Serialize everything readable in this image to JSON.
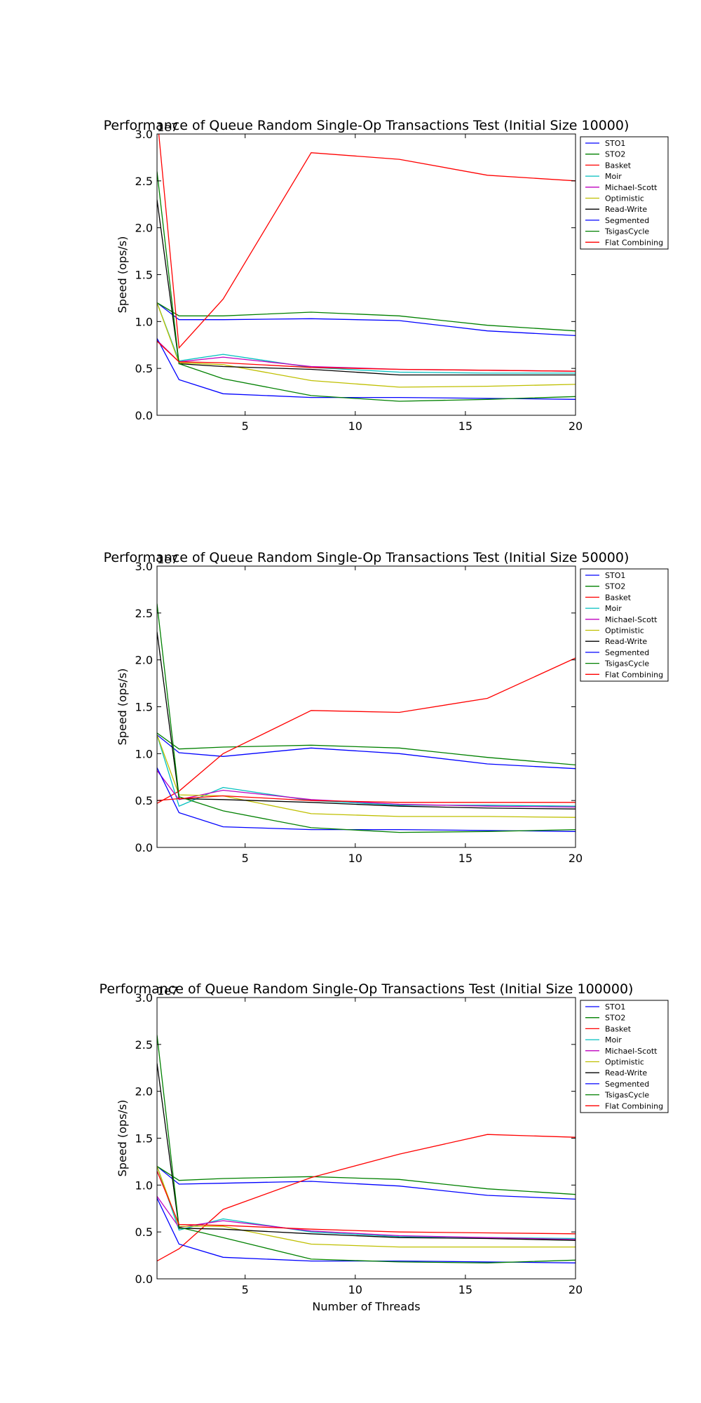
{
  "figure": {
    "xlabel": "Number of Threads"
  },
  "chart_data": [
    {
      "type": "line",
      "title": "Performance of Queue Random Single-Op Transactions Test (Initial Size 10000)",
      "xlabel": "",
      "ylabel": "Speed (ops/s)",
      "y_offset_label": "1e7",
      "xlim": [
        1,
        20
      ],
      "ylim": [
        0,
        3.0
      ],
      "xticks": [
        5,
        10,
        15,
        20
      ],
      "yticks": [
        0.0,
        0.5,
        1.0,
        1.5,
        2.0,
        2.5,
        3.0
      ],
      "legend_position": "outside-right-top",
      "grid": false,
      "x": [
        1,
        2,
        4,
        8,
        12,
        16,
        20
      ],
      "series": [
        {
          "name": "STO1",
          "color": "#0000ff",
          "values": [
            1.2,
            1.02,
            1.02,
            1.03,
            1.01,
            0.9,
            0.85
          ]
        },
        {
          "name": "STO2",
          "color": "#008000",
          "values": [
            1.2,
            1.06,
            1.06,
            1.1,
            1.06,
            0.96,
            0.9
          ]
        },
        {
          "name": "Basket",
          "color": "#ff0000",
          "values": [
            3.2,
            0.72,
            1.24,
            2.8,
            2.73,
            2.56,
            2.5
          ]
        },
        {
          "name": "Moir",
          "color": "#00bfbf",
          "values": [
            1.2,
            0.58,
            0.65,
            0.51,
            0.46,
            0.45,
            0.45
          ]
        },
        {
          "name": "Michael-Scott",
          "color": "#bf00bf",
          "values": [
            0.8,
            0.57,
            0.62,
            0.52,
            0.49,
            0.48,
            0.47
          ]
        },
        {
          "name": "Optimistic",
          "color": "#bfbf00",
          "values": [
            1.2,
            0.56,
            0.54,
            0.37,
            0.3,
            0.31,
            0.33
          ]
        },
        {
          "name": "Read-Write",
          "color": "#000000",
          "values": [
            2.3,
            0.55,
            0.52,
            0.49,
            0.43,
            0.43,
            0.43
          ]
        },
        {
          "name": "Segmented",
          "color": "#0000ff",
          "values": [
            0.82,
            0.38,
            0.23,
            0.19,
            0.19,
            0.18,
            0.17
          ]
        },
        {
          "name": "TsigasCycle",
          "color": "#008000",
          "values": [
            2.6,
            0.55,
            0.39,
            0.21,
            0.15,
            0.17,
            0.2
          ]
        },
        {
          "name": "Flat Combining",
          "color": "#ff0000",
          "values": [
            0.79,
            0.57,
            0.56,
            0.51,
            0.49,
            0.48,
            0.47
          ]
        }
      ]
    },
    {
      "type": "line",
      "title": "Performance of Queue Random Single-Op Transactions Test (Initial Size 50000)",
      "xlabel": "",
      "ylabel": "Speed (ops/s)",
      "y_offset_label": "1e7",
      "xlim": [
        1,
        20
      ],
      "ylim": [
        0,
        3.0
      ],
      "xticks": [
        5,
        10,
        15,
        20
      ],
      "yticks": [
        0.0,
        0.5,
        1.0,
        1.5,
        2.0,
        2.5,
        3.0
      ],
      "legend_position": "outside-right-top",
      "grid": false,
      "x": [
        1,
        2,
        4,
        8,
        12,
        16,
        20
      ],
      "series": [
        {
          "name": "STO1",
          "color": "#0000ff",
          "values": [
            1.2,
            1.01,
            0.97,
            1.06,
            1.0,
            0.89,
            0.84
          ]
        },
        {
          "name": "STO2",
          "color": "#008000",
          "values": [
            1.22,
            1.05,
            1.07,
            1.09,
            1.06,
            0.96,
            0.88
          ]
        },
        {
          "name": "Basket",
          "color": "#ff0000",
          "values": [
            0.47,
            0.6,
            1.0,
            1.46,
            1.44,
            1.59,
            2.02
          ]
        },
        {
          "name": "Moir",
          "color": "#00bfbf",
          "values": [
            1.2,
            0.44,
            0.64,
            0.5,
            0.45,
            0.45,
            0.44
          ]
        },
        {
          "name": "Michael-Scott",
          "color": "#bf00bf",
          "values": [
            0.82,
            0.51,
            0.61,
            0.51,
            0.46,
            0.44,
            0.43
          ]
        },
        {
          "name": "Optimistic",
          "color": "#bfbf00",
          "values": [
            1.2,
            0.56,
            0.55,
            0.36,
            0.33,
            0.33,
            0.32
          ]
        },
        {
          "name": "Read-Write",
          "color": "#000000",
          "values": [
            2.3,
            0.52,
            0.51,
            0.48,
            0.44,
            0.42,
            0.41
          ]
        },
        {
          "name": "Segmented",
          "color": "#0000ff",
          "values": [
            0.85,
            0.37,
            0.22,
            0.19,
            0.19,
            0.18,
            0.17
          ]
        },
        {
          "name": "TsigasCycle",
          "color": "#008000",
          "values": [
            2.6,
            0.54,
            0.39,
            0.21,
            0.16,
            0.17,
            0.19
          ]
        },
        {
          "name": "Flat Combining",
          "color": "#ff0000",
          "values": [
            0.5,
            0.52,
            0.55,
            0.5,
            0.48,
            0.48,
            0.48
          ]
        }
      ]
    },
    {
      "type": "line",
      "title": "Performance of Queue Random Single-Op Transactions Test (Initial Size 100000)",
      "xlabel": "Number of Threads",
      "ylabel": "Speed (ops/s)",
      "y_offset_label": "1e7",
      "xlim": [
        1,
        20
      ],
      "ylim": [
        0,
        3.0
      ],
      "xticks": [
        5,
        10,
        15,
        20
      ],
      "yticks": [
        0.0,
        0.5,
        1.0,
        1.5,
        2.0,
        2.5,
        3.0
      ],
      "legend_position": "outside-right-top",
      "grid": false,
      "x": [
        1,
        2,
        4,
        8,
        12,
        16,
        20
      ],
      "series": [
        {
          "name": "STO1",
          "color": "#0000ff",
          "values": [
            1.2,
            1.01,
            1.02,
            1.04,
            0.99,
            0.89,
            0.85
          ]
        },
        {
          "name": "STO2",
          "color": "#008000",
          "values": [
            1.2,
            1.05,
            1.07,
            1.09,
            1.06,
            0.96,
            0.9
          ]
        },
        {
          "name": "Basket",
          "color": "#ff0000",
          "values": [
            0.19,
            0.32,
            0.74,
            1.08,
            1.33,
            1.54,
            1.51
          ]
        },
        {
          "name": "Moir",
          "color": "#00bfbf",
          "values": [
            1.2,
            0.52,
            0.64,
            0.5,
            0.45,
            0.44,
            0.43
          ]
        },
        {
          "name": "Michael-Scott",
          "color": "#bf00bf",
          "values": [
            0.88,
            0.55,
            0.62,
            0.51,
            0.46,
            0.44,
            0.42
          ]
        },
        {
          "name": "Optimistic",
          "color": "#bfbf00",
          "values": [
            1.2,
            0.56,
            0.56,
            0.37,
            0.34,
            0.34,
            0.34
          ]
        },
        {
          "name": "Read-Write",
          "color": "#000000",
          "values": [
            2.3,
            0.54,
            0.53,
            0.48,
            0.44,
            0.43,
            0.41
          ]
        },
        {
          "name": "Segmented",
          "color": "#0000ff",
          "values": [
            0.86,
            0.37,
            0.23,
            0.19,
            0.19,
            0.18,
            0.17
          ]
        },
        {
          "name": "TsigasCycle",
          "color": "#008000",
          "values": [
            2.6,
            0.55,
            0.44,
            0.21,
            0.18,
            0.17,
            0.2
          ]
        },
        {
          "name": "Flat Combining",
          "color": "#ff0000",
          "values": [
            1.15,
            0.58,
            0.57,
            0.53,
            0.5,
            0.49,
            0.48
          ]
        }
      ]
    }
  ]
}
